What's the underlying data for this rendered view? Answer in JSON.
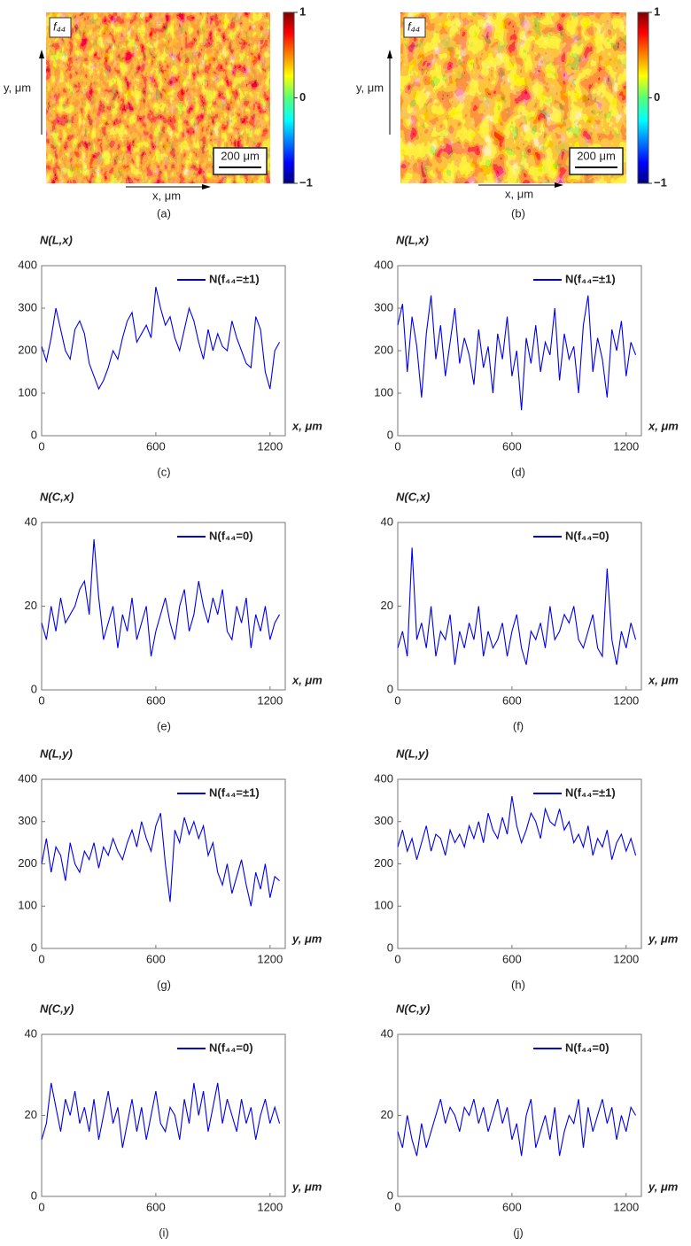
{
  "chart_data": [
    {
      "type": "map",
      "label": "f₄₄",
      "xlabel": "x, μm",
      "ylabel": "y, μm",
      "scale_bar": "200 μm",
      "colormap": "jet",
      "clim": [
        -1,
        1
      ],
      "colorbar_ticks": [
        1,
        0,
        {
          "value": -1,
          "label": "−1"
        }
      ],
      "caption": "(a)"
    },
    {
      "type": "map",
      "label": "f₄₄",
      "xlabel": "x, μm",
      "ylabel": "y, μm",
      "scale_bar": "200 μm",
      "colormap": "jet",
      "clim": [
        -1,
        1
      ],
      "colorbar_ticks": [
        1,
        0,
        {
          "value": -1,
          "label": "−1"
        }
      ],
      "caption": "(b)"
    },
    {
      "type": "line",
      "title": "N(L,x)",
      "xlabel": "x, μm",
      "caption": "(c)",
      "legend": "upper right",
      "xlim": [
        0,
        1280
      ],
      "ylim": [
        0,
        400
      ],
      "xticks": [
        0,
        600,
        1200
      ],
      "yticks": [
        0,
        100,
        200,
        300,
        400
      ],
      "x": [
        0,
        25,
        50,
        75,
        100,
        125,
        150,
        175,
        200,
        225,
        250,
        275,
        300,
        325,
        350,
        375,
        400,
        425,
        450,
        475,
        500,
        525,
        550,
        575,
        600,
        625,
        650,
        675,
        700,
        725,
        750,
        775,
        800,
        825,
        850,
        875,
        900,
        925,
        950,
        975,
        1000,
        1025,
        1050,
        1075,
        1100,
        1125,
        1150,
        1175,
        1200,
        1225,
        1250
      ],
      "series": [
        {
          "name": "N(f₄₄=±1)",
          "color": "#0000ee",
          "values": [
            210,
            175,
            230,
            300,
            250,
            200,
            180,
            250,
            270,
            240,
            170,
            140,
            110,
            130,
            160,
            200,
            180,
            230,
            270,
            290,
            220,
            240,
            260,
            230,
            350,
            300,
            260,
            280,
            230,
            200,
            250,
            300,
            270,
            220,
            180,
            250,
            200,
            240,
            210,
            200,
            270,
            230,
            200,
            170,
            160,
            280,
            250,
            150,
            110,
            200,
            220
          ]
        }
      ]
    },
    {
      "type": "line",
      "title": "N(L,x)",
      "xlabel": "x, μm",
      "caption": "(d)",
      "legend": "upper right",
      "xlim": [
        0,
        1280
      ],
      "ylim": [
        0,
        400
      ],
      "xticks": [
        0,
        600,
        1200
      ],
      "yticks": [
        0,
        100,
        200,
        300,
        400
      ],
      "x": [
        0,
        25,
        50,
        75,
        100,
        125,
        150,
        175,
        200,
        225,
        250,
        275,
        300,
        325,
        350,
        375,
        400,
        425,
        450,
        475,
        500,
        525,
        550,
        575,
        600,
        625,
        650,
        675,
        700,
        725,
        750,
        775,
        800,
        825,
        850,
        875,
        900,
        925,
        950,
        975,
        1000,
        1025,
        1050,
        1075,
        1100,
        1125,
        1150,
        1175,
        1200,
        1225,
        1250
      ],
      "series": [
        {
          "name": "N(f₄₄=±1)",
          "color": "#0000ee",
          "values": [
            260,
            310,
            150,
            280,
            210,
            90,
            240,
            330,
            180,
            260,
            140,
            220,
            300,
            170,
            230,
            190,
            120,
            250,
            160,
            210,
            100,
            240,
            180,
            280,
            140,
            200,
            60,
            230,
            170,
            260,
            150,
            220,
            190,
            300,
            130,
            240,
            180,
            210,
            100,
            260,
            330,
            150,
            230,
            180,
            90,
            250,
            200,
            270,
            140,
            220,
            190
          ]
        }
      ]
    },
    {
      "type": "line",
      "title": "N(C,x)",
      "xlabel": "x, μm",
      "caption": "(e)",
      "legend": "upper right",
      "xlim": [
        0,
        1280
      ],
      "ylim": [
        0,
        40
      ],
      "xticks": [
        0,
        600,
        1200
      ],
      "yticks": [
        0,
        20,
        40
      ],
      "x": [
        0,
        25,
        50,
        75,
        100,
        125,
        150,
        175,
        200,
        225,
        250,
        275,
        300,
        325,
        350,
        375,
        400,
        425,
        450,
        475,
        500,
        525,
        550,
        575,
        600,
        625,
        650,
        675,
        700,
        725,
        750,
        775,
        800,
        825,
        850,
        875,
        900,
        925,
        950,
        975,
        1000,
        1025,
        1050,
        1075,
        1100,
        1125,
        1150,
        1175,
        1200,
        1225,
        1250
      ],
      "series": [
        {
          "name": "N(f₄₄=0)",
          "color": "#0000ee",
          "values": [
            16,
            12,
            20,
            14,
            22,
            16,
            18,
            20,
            24,
            26,
            18,
            36,
            22,
            12,
            16,
            20,
            10,
            18,
            14,
            22,
            12,
            16,
            20,
            8,
            14,
            18,
            22,
            16,
            12,
            20,
            24,
            14,
            18,
            26,
            20,
            16,
            22,
            18,
            24,
            14,
            12,
            20,
            16,
            22,
            10,
            18,
            14,
            20,
            12,
            16,
            18
          ]
        }
      ]
    },
    {
      "type": "line",
      "title": "N(C,x)",
      "xlabel": "x, μm",
      "caption": "(f)",
      "legend": "upper right",
      "xlim": [
        0,
        1280
      ],
      "ylim": [
        0,
        40
      ],
      "xticks": [
        0,
        600,
        1200
      ],
      "yticks": [
        0,
        20,
        40
      ],
      "x": [
        0,
        25,
        50,
        75,
        100,
        125,
        150,
        175,
        200,
        225,
        250,
        275,
        300,
        325,
        350,
        375,
        400,
        425,
        450,
        475,
        500,
        525,
        550,
        575,
        600,
        625,
        650,
        675,
        700,
        725,
        750,
        775,
        800,
        825,
        850,
        875,
        900,
        925,
        950,
        975,
        1000,
        1025,
        1050,
        1075,
        1100,
        1125,
        1150,
        1175,
        1200,
        1225,
        1250
      ],
      "series": [
        {
          "name": "N(f₄₄=0)",
          "color": "#0000ee",
          "values": [
            10,
            14,
            8,
            34,
            12,
            16,
            10,
            20,
            8,
            14,
            12,
            18,
            6,
            14,
            10,
            16,
            12,
            20,
            8,
            14,
            10,
            12,
            16,
            8,
            14,
            18,
            10,
            6,
            14,
            12,
            16,
            10,
            20,
            12,
            14,
            18,
            16,
            20,
            12,
            10,
            14,
            18,
            10,
            8,
            29,
            12,
            6,
            14,
            10,
            16,
            12
          ]
        }
      ]
    },
    {
      "type": "line",
      "title": "N(L,y)",
      "xlabel": "y, μm",
      "caption": "(g)",
      "legend": "upper right",
      "xlim": [
        0,
        1280
      ],
      "ylim": [
        0,
        400
      ],
      "xticks": [
        0,
        600,
        1200
      ],
      "yticks": [
        0,
        100,
        200,
        300,
        400
      ],
      "x": [
        0,
        25,
        50,
        75,
        100,
        125,
        150,
        175,
        200,
        225,
        250,
        275,
        300,
        325,
        350,
        375,
        400,
        425,
        450,
        475,
        500,
        525,
        550,
        575,
        600,
        625,
        650,
        675,
        700,
        725,
        750,
        775,
        800,
        825,
        850,
        875,
        900,
        925,
        950,
        975,
        1000,
        1025,
        1050,
        1075,
        1100,
        1125,
        1150,
        1175,
        1200,
        1225,
        1250
      ],
      "series": [
        {
          "name": "N(f₄₄=±1)",
          "color": "#0000ee",
          "values": [
            200,
            260,
            180,
            240,
            220,
            160,
            250,
            200,
            180,
            230,
            210,
            250,
            190,
            240,
            220,
            260,
            230,
            210,
            250,
            280,
            240,
            300,
            260,
            230,
            290,
            320,
            200,
            110,
            280,
            250,
            310,
            270,
            300,
            260,
            290,
            220,
            250,
            180,
            150,
            200,
            130,
            170,
            210,
            150,
            100,
            180,
            140,
            200,
            120,
            170,
            160
          ]
        }
      ]
    },
    {
      "type": "line",
      "title": "N(L,y)",
      "xlabel": "y, μm",
      "caption": "(h)",
      "legend": "upper right",
      "xlim": [
        0,
        1280
      ],
      "ylim": [
        0,
        400
      ],
      "xticks": [
        0,
        600,
        1200
      ],
      "yticks": [
        0,
        100,
        200,
        300,
        400
      ],
      "x": [
        0,
        25,
        50,
        75,
        100,
        125,
        150,
        175,
        200,
        225,
        250,
        275,
        300,
        325,
        350,
        375,
        400,
        425,
        450,
        475,
        500,
        525,
        550,
        575,
        600,
        625,
        650,
        675,
        700,
        725,
        750,
        775,
        800,
        825,
        850,
        875,
        900,
        925,
        950,
        975,
        1000,
        1025,
        1050,
        1075,
        1100,
        1125,
        1150,
        1175,
        1200,
        1225,
        1250
      ],
      "series": [
        {
          "name": "N(f₄₄=±1)",
          "color": "#0000ee",
          "values": [
            240,
            280,
            230,
            260,
            210,
            250,
            290,
            230,
            270,
            260,
            220,
            280,
            250,
            270,
            240,
            290,
            260,
            300,
            250,
            320,
            280,
            260,
            310,
            270,
            360,
            290,
            250,
            280,
            320,
            300,
            260,
            330,
            300,
            290,
            330,
            280,
            300,
            250,
            270,
            240,
            290,
            220,
            260,
            240,
            280,
            210,
            250,
            270,
            230,
            260,
            220
          ]
        }
      ]
    },
    {
      "type": "line",
      "title": "N(C,y)",
      "xlabel": "y, μm",
      "caption": "(i)",
      "legend": "upper right",
      "xlim": [
        0,
        1280
      ],
      "ylim": [
        0,
        40
      ],
      "xticks": [
        0,
        600,
        1200
      ],
      "yticks": [
        0,
        20,
        40
      ],
      "x": [
        0,
        25,
        50,
        75,
        100,
        125,
        150,
        175,
        200,
        225,
        250,
        275,
        300,
        325,
        350,
        375,
        400,
        425,
        450,
        475,
        500,
        525,
        550,
        575,
        600,
        625,
        650,
        675,
        700,
        725,
        750,
        775,
        800,
        825,
        850,
        875,
        900,
        925,
        950,
        975,
        1000,
        1025,
        1050,
        1075,
        1100,
        1125,
        1150,
        1175,
        1200,
        1225,
        1250
      ],
      "series": [
        {
          "name": "N(f₄₄=0)",
          "color": "#0000ee",
          "values": [
            14,
            18,
            28,
            22,
            16,
            24,
            20,
            26,
            18,
            22,
            16,
            24,
            14,
            20,
            26,
            18,
            22,
            12,
            18,
            24,
            16,
            22,
            14,
            20,
            26,
            18,
            16,
            22,
            20,
            14,
            24,
            18,
            28,
            20,
            26,
            16,
            22,
            28,
            18,
            24,
            20,
            16,
            24,
            18,
            22,
            14,
            20,
            24,
            18,
            22,
            18
          ]
        }
      ]
    },
    {
      "type": "line",
      "title": "N(C,y)",
      "xlabel": "y, μm",
      "caption": "(j)",
      "legend": "upper right",
      "xlim": [
        0,
        1280
      ],
      "ylim": [
        0,
        40
      ],
      "xticks": [
        0,
        600,
        1200
      ],
      "yticks": [
        0,
        20,
        40
      ],
      "x": [
        0,
        25,
        50,
        75,
        100,
        125,
        150,
        175,
        200,
        225,
        250,
        275,
        300,
        325,
        350,
        375,
        400,
        425,
        450,
        475,
        500,
        525,
        550,
        575,
        600,
        625,
        650,
        675,
        700,
        725,
        750,
        775,
        800,
        825,
        850,
        875,
        900,
        925,
        950,
        975,
        1000,
        1025,
        1050,
        1075,
        1100,
        1125,
        1150,
        1175,
        1200,
        1225,
        1250
      ],
      "series": [
        {
          "name": "N(f₄₄=0)",
          "color": "#0000ee",
          "values": [
            16,
            12,
            20,
            14,
            10,
            18,
            12,
            16,
            20,
            24,
            18,
            22,
            20,
            16,
            22,
            20,
            24,
            18,
            22,
            16,
            20,
            24,
            18,
            22,
            14,
            18,
            10,
            20,
            24,
            12,
            16,
            20,
            14,
            22,
            10,
            16,
            20,
            18,
            24,
            12,
            22,
            16,
            20,
            24,
            18,
            22,
            14,
            20,
            16,
            22,
            20
          ]
        }
      ]
    }
  ]
}
